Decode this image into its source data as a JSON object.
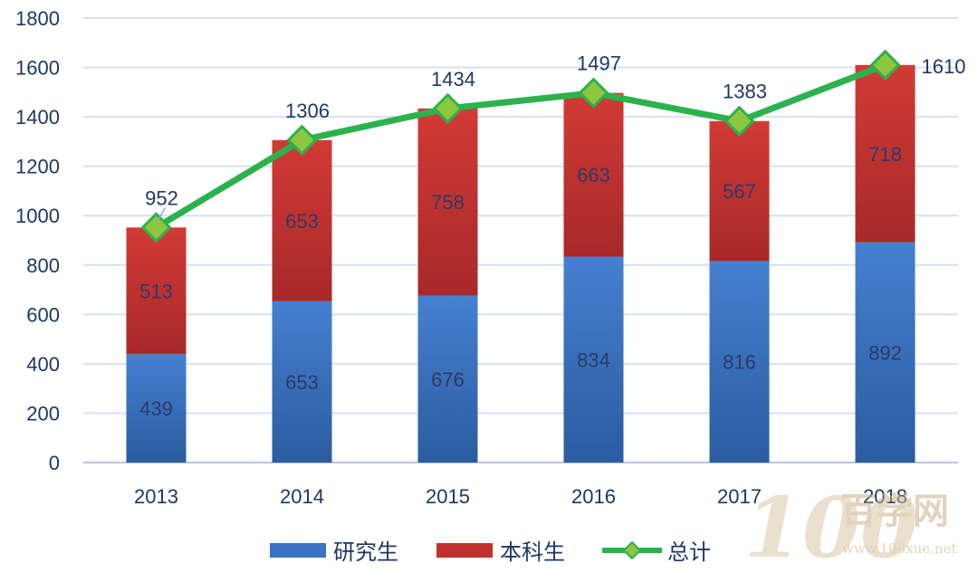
{
  "chart_data": {
    "type": "bar",
    "stacked": true,
    "categories": [
      "2013",
      "2014",
      "2015",
      "2016",
      "2017",
      "2018"
    ],
    "series": [
      {
        "name": "研究生",
        "kind": "bar",
        "color": "#3a72c4",
        "values": [
          439,
          653,
          676,
          834,
          816,
          892
        ]
      },
      {
        "name": "本科生",
        "kind": "bar",
        "color": "#c0312d",
        "values": [
          513,
          653,
          758,
          663,
          567,
          718
        ]
      },
      {
        "name": "总计",
        "kind": "line",
        "color": "#2bb24c",
        "marker_color": "#8dc63f",
        "values": [
          952,
          1306,
          1434,
          1497,
          1383,
          1610
        ]
      }
    ],
    "yticks": [
      "0",
      "200",
      "400",
      "600",
      "800",
      "1000",
      "1200",
      "1400",
      "1600",
      "1800"
    ],
    "ylim": [
      0,
      1800
    ],
    "grid": true,
    "legend_position": "bottom"
  },
  "watermark": {
    "logo_text": "100",
    "brand_text": "百学网",
    "url_text": "www.100xue.net"
  }
}
